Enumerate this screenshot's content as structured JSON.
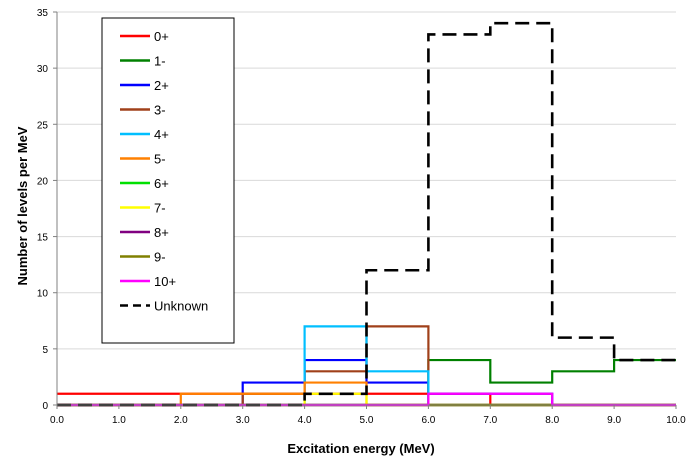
{
  "chart_data": {
    "type": "line",
    "xlabel": "Excitation energy (MeV)",
    "ylabel": "Number of levels per MeV",
    "xlim": [
      0,
      10
    ],
    "ylim": [
      0,
      35
    ],
    "x_ticks": [
      "0.0",
      "1.0",
      "2.0",
      "3.0",
      "4.0",
      "5.0",
      "6.0",
      "7.0",
      "8.0",
      "9.0",
      "10.0"
    ],
    "y_ticks": [
      "0",
      "5",
      "10",
      "15",
      "20",
      "25",
      "30",
      "35"
    ],
    "grid": "horizontal",
    "legend_position": "top-left",
    "bin_edges": [
      0,
      1,
      2,
      3,
      4,
      5,
      6,
      7,
      8,
      9,
      10
    ],
    "series": [
      {
        "name": "0+",
        "color": "#ff0000",
        "values": [
          1,
          1,
          1,
          1,
          1,
          1,
          1,
          0,
          0,
          0
        ]
      },
      {
        "name": "1-",
        "color": "#008000",
        "values": [
          0,
          0,
          0,
          0,
          0,
          0,
          4,
          2,
          3,
          4
        ]
      },
      {
        "name": "2+",
        "color": "#0000ff",
        "values": [
          0,
          0,
          0,
          2,
          4,
          2,
          1,
          1,
          0,
          0
        ]
      },
      {
        "name": "3-",
        "color": "#a0401a",
        "values": [
          0,
          0,
          0,
          1,
          3,
          7,
          0,
          0,
          0,
          0
        ]
      },
      {
        "name": "4+",
        "color": "#00bfff",
        "values": [
          0,
          0,
          0,
          0,
          7,
          3,
          0,
          0,
          0,
          0
        ]
      },
      {
        "name": "5-",
        "color": "#ff8000",
        "values": [
          0,
          0,
          1,
          1,
          2,
          0,
          0,
          0,
          0,
          0
        ]
      },
      {
        "name": "6+",
        "color": "#00e000",
        "values": [
          0,
          0,
          0,
          0,
          0,
          0,
          0,
          0,
          0,
          0
        ]
      },
      {
        "name": "7-",
        "color": "#ffff00",
        "values": [
          0,
          0,
          0,
          0,
          1,
          0,
          0,
          0,
          0,
          0
        ]
      },
      {
        "name": "8+",
        "color": "#800080",
        "values": [
          0,
          0,
          0,
          0,
          0,
          0,
          0,
          0,
          0,
          0
        ]
      },
      {
        "name": "9-",
        "color": "#808000",
        "values": [
          0,
          0,
          0,
          0,
          0,
          0,
          0,
          0,
          0,
          0
        ]
      },
      {
        "name": "10+",
        "color": "#ff00ff",
        "values": [
          0,
          0,
          0,
          0,
          0,
          0,
          1,
          1,
          0,
          0
        ]
      },
      {
        "name": "Unknown",
        "color": "#000000",
        "dashed": true,
        "values": [
          0,
          0,
          0,
          0,
          1,
          12,
          33,
          34,
          6,
          4
        ]
      }
    ]
  }
}
